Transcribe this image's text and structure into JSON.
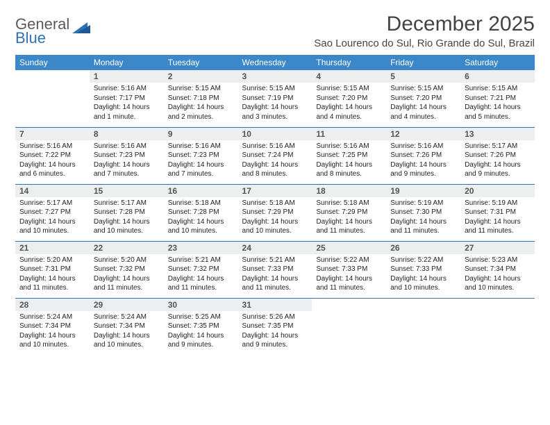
{
  "brand": {
    "top": "General",
    "bottom": "Blue"
  },
  "title": "December 2025",
  "location": "Sao Lourenco do Sul, Rio Grande do Sul, Brazil",
  "colors": {
    "header_bg": "#3b87c8",
    "header_text": "#ffffff",
    "rule": "#2d72b5",
    "daynum_bg": "#eceeef",
    "daynum_text": "#555555",
    "body_text": "#222222",
    "logo_gray": "#5a5a5a",
    "logo_blue": "#2d72b5",
    "background": "#ffffff"
  },
  "typography": {
    "title_fontsize": 30,
    "location_fontsize": 15,
    "dayheader_fontsize": 12,
    "daynum_fontsize": 12,
    "body_fontsize": 10
  },
  "day_headers": [
    "Sunday",
    "Monday",
    "Tuesday",
    "Wednesday",
    "Thursday",
    "Friday",
    "Saturday"
  ],
  "weeks": [
    [
      {
        "n": "",
        "sr": "",
        "ss": "",
        "dl": ""
      },
      {
        "n": "1",
        "sr": "Sunrise: 5:16 AM",
        "ss": "Sunset: 7:17 PM",
        "dl": "Daylight: 14 hours and 1 minute."
      },
      {
        "n": "2",
        "sr": "Sunrise: 5:15 AM",
        "ss": "Sunset: 7:18 PM",
        "dl": "Daylight: 14 hours and 2 minutes."
      },
      {
        "n": "3",
        "sr": "Sunrise: 5:15 AM",
        "ss": "Sunset: 7:19 PM",
        "dl": "Daylight: 14 hours and 3 minutes."
      },
      {
        "n": "4",
        "sr": "Sunrise: 5:15 AM",
        "ss": "Sunset: 7:20 PM",
        "dl": "Daylight: 14 hours and 4 minutes."
      },
      {
        "n": "5",
        "sr": "Sunrise: 5:15 AM",
        "ss": "Sunset: 7:20 PM",
        "dl": "Daylight: 14 hours and 4 minutes."
      },
      {
        "n": "6",
        "sr": "Sunrise: 5:15 AM",
        "ss": "Sunset: 7:21 PM",
        "dl": "Daylight: 14 hours and 5 minutes."
      }
    ],
    [
      {
        "n": "7",
        "sr": "Sunrise: 5:16 AM",
        "ss": "Sunset: 7:22 PM",
        "dl": "Daylight: 14 hours and 6 minutes."
      },
      {
        "n": "8",
        "sr": "Sunrise: 5:16 AM",
        "ss": "Sunset: 7:23 PM",
        "dl": "Daylight: 14 hours and 7 minutes."
      },
      {
        "n": "9",
        "sr": "Sunrise: 5:16 AM",
        "ss": "Sunset: 7:23 PM",
        "dl": "Daylight: 14 hours and 7 minutes."
      },
      {
        "n": "10",
        "sr": "Sunrise: 5:16 AM",
        "ss": "Sunset: 7:24 PM",
        "dl": "Daylight: 14 hours and 8 minutes."
      },
      {
        "n": "11",
        "sr": "Sunrise: 5:16 AM",
        "ss": "Sunset: 7:25 PM",
        "dl": "Daylight: 14 hours and 8 minutes."
      },
      {
        "n": "12",
        "sr": "Sunrise: 5:16 AM",
        "ss": "Sunset: 7:26 PM",
        "dl": "Daylight: 14 hours and 9 minutes."
      },
      {
        "n": "13",
        "sr": "Sunrise: 5:17 AM",
        "ss": "Sunset: 7:26 PM",
        "dl": "Daylight: 14 hours and 9 minutes."
      }
    ],
    [
      {
        "n": "14",
        "sr": "Sunrise: 5:17 AM",
        "ss": "Sunset: 7:27 PM",
        "dl": "Daylight: 14 hours and 10 minutes."
      },
      {
        "n": "15",
        "sr": "Sunrise: 5:17 AM",
        "ss": "Sunset: 7:28 PM",
        "dl": "Daylight: 14 hours and 10 minutes."
      },
      {
        "n": "16",
        "sr": "Sunrise: 5:18 AM",
        "ss": "Sunset: 7:28 PM",
        "dl": "Daylight: 14 hours and 10 minutes."
      },
      {
        "n": "17",
        "sr": "Sunrise: 5:18 AM",
        "ss": "Sunset: 7:29 PM",
        "dl": "Daylight: 14 hours and 10 minutes."
      },
      {
        "n": "18",
        "sr": "Sunrise: 5:18 AM",
        "ss": "Sunset: 7:29 PM",
        "dl": "Daylight: 14 hours and 11 minutes."
      },
      {
        "n": "19",
        "sr": "Sunrise: 5:19 AM",
        "ss": "Sunset: 7:30 PM",
        "dl": "Daylight: 14 hours and 11 minutes."
      },
      {
        "n": "20",
        "sr": "Sunrise: 5:19 AM",
        "ss": "Sunset: 7:31 PM",
        "dl": "Daylight: 14 hours and 11 minutes."
      }
    ],
    [
      {
        "n": "21",
        "sr": "Sunrise: 5:20 AM",
        "ss": "Sunset: 7:31 PM",
        "dl": "Daylight: 14 hours and 11 minutes."
      },
      {
        "n": "22",
        "sr": "Sunrise: 5:20 AM",
        "ss": "Sunset: 7:32 PM",
        "dl": "Daylight: 14 hours and 11 minutes."
      },
      {
        "n": "23",
        "sr": "Sunrise: 5:21 AM",
        "ss": "Sunset: 7:32 PM",
        "dl": "Daylight: 14 hours and 11 minutes."
      },
      {
        "n": "24",
        "sr": "Sunrise: 5:21 AM",
        "ss": "Sunset: 7:33 PM",
        "dl": "Daylight: 14 hours and 11 minutes."
      },
      {
        "n": "25",
        "sr": "Sunrise: 5:22 AM",
        "ss": "Sunset: 7:33 PM",
        "dl": "Daylight: 14 hours and 11 minutes."
      },
      {
        "n": "26",
        "sr": "Sunrise: 5:22 AM",
        "ss": "Sunset: 7:33 PM",
        "dl": "Daylight: 14 hours and 10 minutes."
      },
      {
        "n": "27",
        "sr": "Sunrise: 5:23 AM",
        "ss": "Sunset: 7:34 PM",
        "dl": "Daylight: 14 hours and 10 minutes."
      }
    ],
    [
      {
        "n": "28",
        "sr": "Sunrise: 5:24 AM",
        "ss": "Sunset: 7:34 PM",
        "dl": "Daylight: 14 hours and 10 minutes."
      },
      {
        "n": "29",
        "sr": "Sunrise: 5:24 AM",
        "ss": "Sunset: 7:34 PM",
        "dl": "Daylight: 14 hours and 10 minutes."
      },
      {
        "n": "30",
        "sr": "Sunrise: 5:25 AM",
        "ss": "Sunset: 7:35 PM",
        "dl": "Daylight: 14 hours and 9 minutes."
      },
      {
        "n": "31",
        "sr": "Sunrise: 5:26 AM",
        "ss": "Sunset: 7:35 PM",
        "dl": "Daylight: 14 hours and 9 minutes."
      },
      {
        "n": "",
        "sr": "",
        "ss": "",
        "dl": ""
      },
      {
        "n": "",
        "sr": "",
        "ss": "",
        "dl": ""
      },
      {
        "n": "",
        "sr": "",
        "ss": "",
        "dl": ""
      }
    ]
  ]
}
